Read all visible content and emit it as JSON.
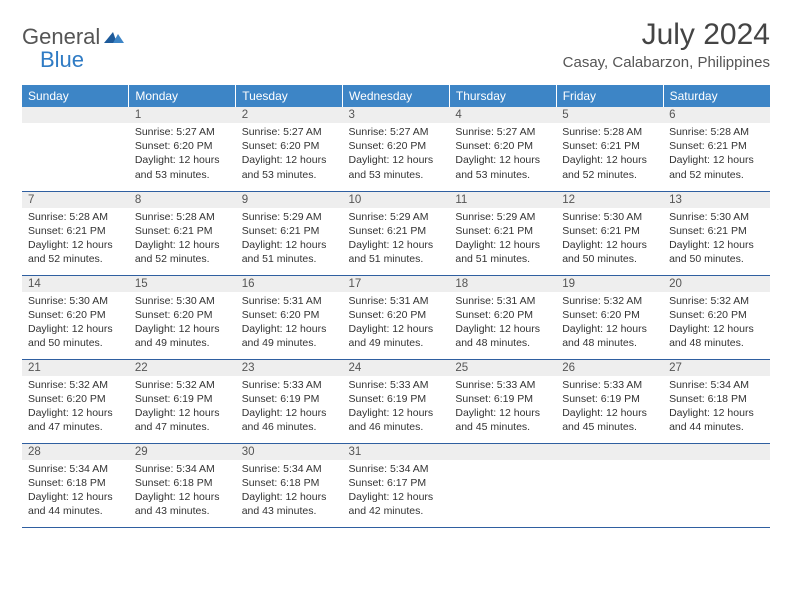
{
  "logo": {
    "general": "General",
    "blue": "Blue"
  },
  "title": "July 2024",
  "location": "Casay, Calabarzon, Philippines",
  "colors": {
    "header_bg": "#3d85c6",
    "header_text": "#ffffff",
    "daynum_bg": "#eeeeee",
    "row_border": "#2f5fa0",
    "logo_blue": "#2f7bc4",
    "logo_gray": "#555555"
  },
  "weekdays": [
    "Sunday",
    "Monday",
    "Tuesday",
    "Wednesday",
    "Thursday",
    "Friday",
    "Saturday"
  ],
  "days": [
    {
      "n": "1",
      "sr": "5:27 AM",
      "ss": "6:20 PM",
      "dh": "12",
      "dm": "53"
    },
    {
      "n": "2",
      "sr": "5:27 AM",
      "ss": "6:20 PM",
      "dh": "12",
      "dm": "53"
    },
    {
      "n": "3",
      "sr": "5:27 AM",
      "ss": "6:20 PM",
      "dh": "12",
      "dm": "53"
    },
    {
      "n": "4",
      "sr": "5:27 AM",
      "ss": "6:20 PM",
      "dh": "12",
      "dm": "53"
    },
    {
      "n": "5",
      "sr": "5:28 AM",
      "ss": "6:21 PM",
      "dh": "12",
      "dm": "52"
    },
    {
      "n": "6",
      "sr": "5:28 AM",
      "ss": "6:21 PM",
      "dh": "12",
      "dm": "52"
    },
    {
      "n": "7",
      "sr": "5:28 AM",
      "ss": "6:21 PM",
      "dh": "12",
      "dm": "52"
    },
    {
      "n": "8",
      "sr": "5:28 AM",
      "ss": "6:21 PM",
      "dh": "12",
      "dm": "52"
    },
    {
      "n": "9",
      "sr": "5:29 AM",
      "ss": "6:21 PM",
      "dh": "12",
      "dm": "51"
    },
    {
      "n": "10",
      "sr": "5:29 AM",
      "ss": "6:21 PM",
      "dh": "12",
      "dm": "51"
    },
    {
      "n": "11",
      "sr": "5:29 AM",
      "ss": "6:21 PM",
      "dh": "12",
      "dm": "51"
    },
    {
      "n": "12",
      "sr": "5:30 AM",
      "ss": "6:21 PM",
      "dh": "12",
      "dm": "50"
    },
    {
      "n": "13",
      "sr": "5:30 AM",
      "ss": "6:21 PM",
      "dh": "12",
      "dm": "50"
    },
    {
      "n": "14",
      "sr": "5:30 AM",
      "ss": "6:20 PM",
      "dh": "12",
      "dm": "50"
    },
    {
      "n": "15",
      "sr": "5:30 AM",
      "ss": "6:20 PM",
      "dh": "12",
      "dm": "49"
    },
    {
      "n": "16",
      "sr": "5:31 AM",
      "ss": "6:20 PM",
      "dh": "12",
      "dm": "49"
    },
    {
      "n": "17",
      "sr": "5:31 AM",
      "ss": "6:20 PM",
      "dh": "12",
      "dm": "49"
    },
    {
      "n": "18",
      "sr": "5:31 AM",
      "ss": "6:20 PM",
      "dh": "12",
      "dm": "48"
    },
    {
      "n": "19",
      "sr": "5:32 AM",
      "ss": "6:20 PM",
      "dh": "12",
      "dm": "48"
    },
    {
      "n": "20",
      "sr": "5:32 AM",
      "ss": "6:20 PM",
      "dh": "12",
      "dm": "48"
    },
    {
      "n": "21",
      "sr": "5:32 AM",
      "ss": "6:20 PM",
      "dh": "12",
      "dm": "47"
    },
    {
      "n": "22",
      "sr": "5:32 AM",
      "ss": "6:19 PM",
      "dh": "12",
      "dm": "47"
    },
    {
      "n": "23",
      "sr": "5:33 AM",
      "ss": "6:19 PM",
      "dh": "12",
      "dm": "46"
    },
    {
      "n": "24",
      "sr": "5:33 AM",
      "ss": "6:19 PM",
      "dh": "12",
      "dm": "46"
    },
    {
      "n": "25",
      "sr": "5:33 AM",
      "ss": "6:19 PM",
      "dh": "12",
      "dm": "45"
    },
    {
      "n": "26",
      "sr": "5:33 AM",
      "ss": "6:19 PM",
      "dh": "12",
      "dm": "45"
    },
    {
      "n": "27",
      "sr": "5:34 AM",
      "ss": "6:18 PM",
      "dh": "12",
      "dm": "44"
    },
    {
      "n": "28",
      "sr": "5:34 AM",
      "ss": "6:18 PM",
      "dh": "12",
      "dm": "44"
    },
    {
      "n": "29",
      "sr": "5:34 AM",
      "ss": "6:18 PM",
      "dh": "12",
      "dm": "43"
    },
    {
      "n": "30",
      "sr": "5:34 AM",
      "ss": "6:18 PM",
      "dh": "12",
      "dm": "43"
    },
    {
      "n": "31",
      "sr": "5:34 AM",
      "ss": "6:17 PM",
      "dh": "12",
      "dm": "42"
    }
  ],
  "labels": {
    "sunrise": "Sunrise:",
    "sunset": "Sunset:",
    "daylight": "Daylight:",
    "hours": "hours",
    "and": "and",
    "minutes": "minutes."
  },
  "layout": {
    "first_day_offset": 1,
    "trailing_blanks": 3
  }
}
